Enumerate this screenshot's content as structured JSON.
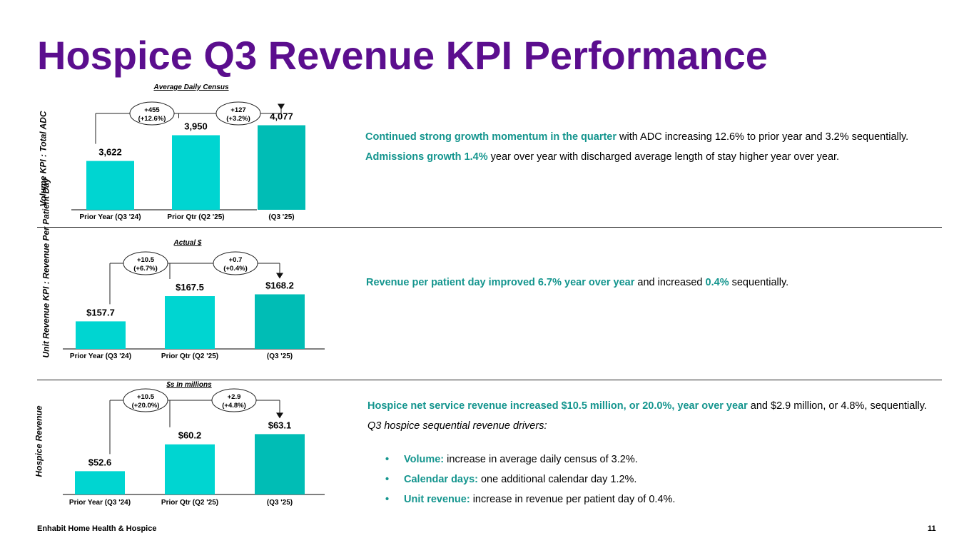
{
  "slide": {
    "title": "Hospice Q3 Revenue KPI Performance",
    "footer_company": "Enhabit Home Health & Hospice",
    "page_number": "11"
  },
  "colors": {
    "title": "#5b0e8e",
    "bar_light": "#00d5d1",
    "bar_dark": "#00bdb5",
    "highlight": "#14958e"
  },
  "chart_data": [
    {
      "type": "bar",
      "title": "Average Daily Census",
      "ylabel": "Volume KPI : Total ADC",
      "categories": [
        "Prior Year  (Q3 '24)",
        "Prior Qtr (Q2 '25)",
        "(Q3 '25)"
      ],
      "values": [
        3622,
        3950,
        4077
      ],
      "value_labels": [
        "3,622",
        "3,950",
        "4,077"
      ],
      "ylim": [
        3000,
        4200
      ],
      "changes": [
        {
          "value": "+455",
          "pct": "(+12.6%)"
        },
        {
          "value": "+127",
          "pct": "(+3.2%)"
        }
      ]
    },
    {
      "type": "bar",
      "title": "Actual $",
      "ylabel": "Unit Revenue KPI : Revenue Per Patient Day",
      "categories": [
        "Prior Year  (Q3 '24)",
        "Prior Qtr (Q2 '25)",
        "(Q3 '25)"
      ],
      "values": [
        157.7,
        167.5,
        168.2
      ],
      "value_labels": [
        "$157.7",
        "$167.5",
        "$168.2"
      ],
      "ylim": [
        147,
        170
      ],
      "changes": [
        {
          "value": "+10.5",
          "pct": "(+6.7%)"
        },
        {
          "value": "+0.7",
          "pct": "(+0.4%)"
        }
      ]
    },
    {
      "type": "bar",
      "title": "$s In millions",
      "ylabel": "Hospice Revenue",
      "categories": [
        "Prior Year  (Q3 '24)",
        "Prior Qtr (Q2 '25)",
        "(Q3 '25)"
      ],
      "values": [
        52.6,
        60.2,
        63.1
      ],
      "value_labels": [
        "$52.6",
        "$60.2",
        "$63.1"
      ],
      "ylim": [
        46,
        65
      ],
      "changes": [
        {
          "value": "+10.5",
          "pct": "(+20.0%)"
        },
        {
          "value": "+2.9",
          "pct": "(+4.8%)"
        }
      ]
    }
  ],
  "commentary": {
    "adc": {
      "p1_hl": "Continued strong growth momentum in the quarter",
      "p1_rest": " with ADC increasing 12.6% to prior year and 3.2% sequentially.",
      "p2_hl": "Admissions growth 1.4%",
      "p2_rest": " year over year with discharged average length of stay higher year over year."
    },
    "rppd": {
      "hl1": "Revenue per patient day improved 6.7% year over year",
      "mid": " and increased ",
      "hl2": "0.4%",
      "end": " sequentially."
    },
    "revenue": {
      "p1_hl": "Hospice net service revenue increased $10.5 million, or 20.0%, year over year",
      "p1_rest": " and $2.9 million, or 4.8%, sequentially.",
      "drivers_heading": "Q3 hospice sequential revenue drivers:",
      "bullet_char": "•",
      "bullets": [
        {
          "label": "Volume:",
          "text": " increase in average daily census of 3.2%."
        },
        {
          "label": "Calendar days:",
          "text": " one additional calendar day 1.2%."
        },
        {
          "label": "Unit revenue:",
          "text": " increase in revenue per patient day of 0.4%."
        }
      ]
    }
  }
}
